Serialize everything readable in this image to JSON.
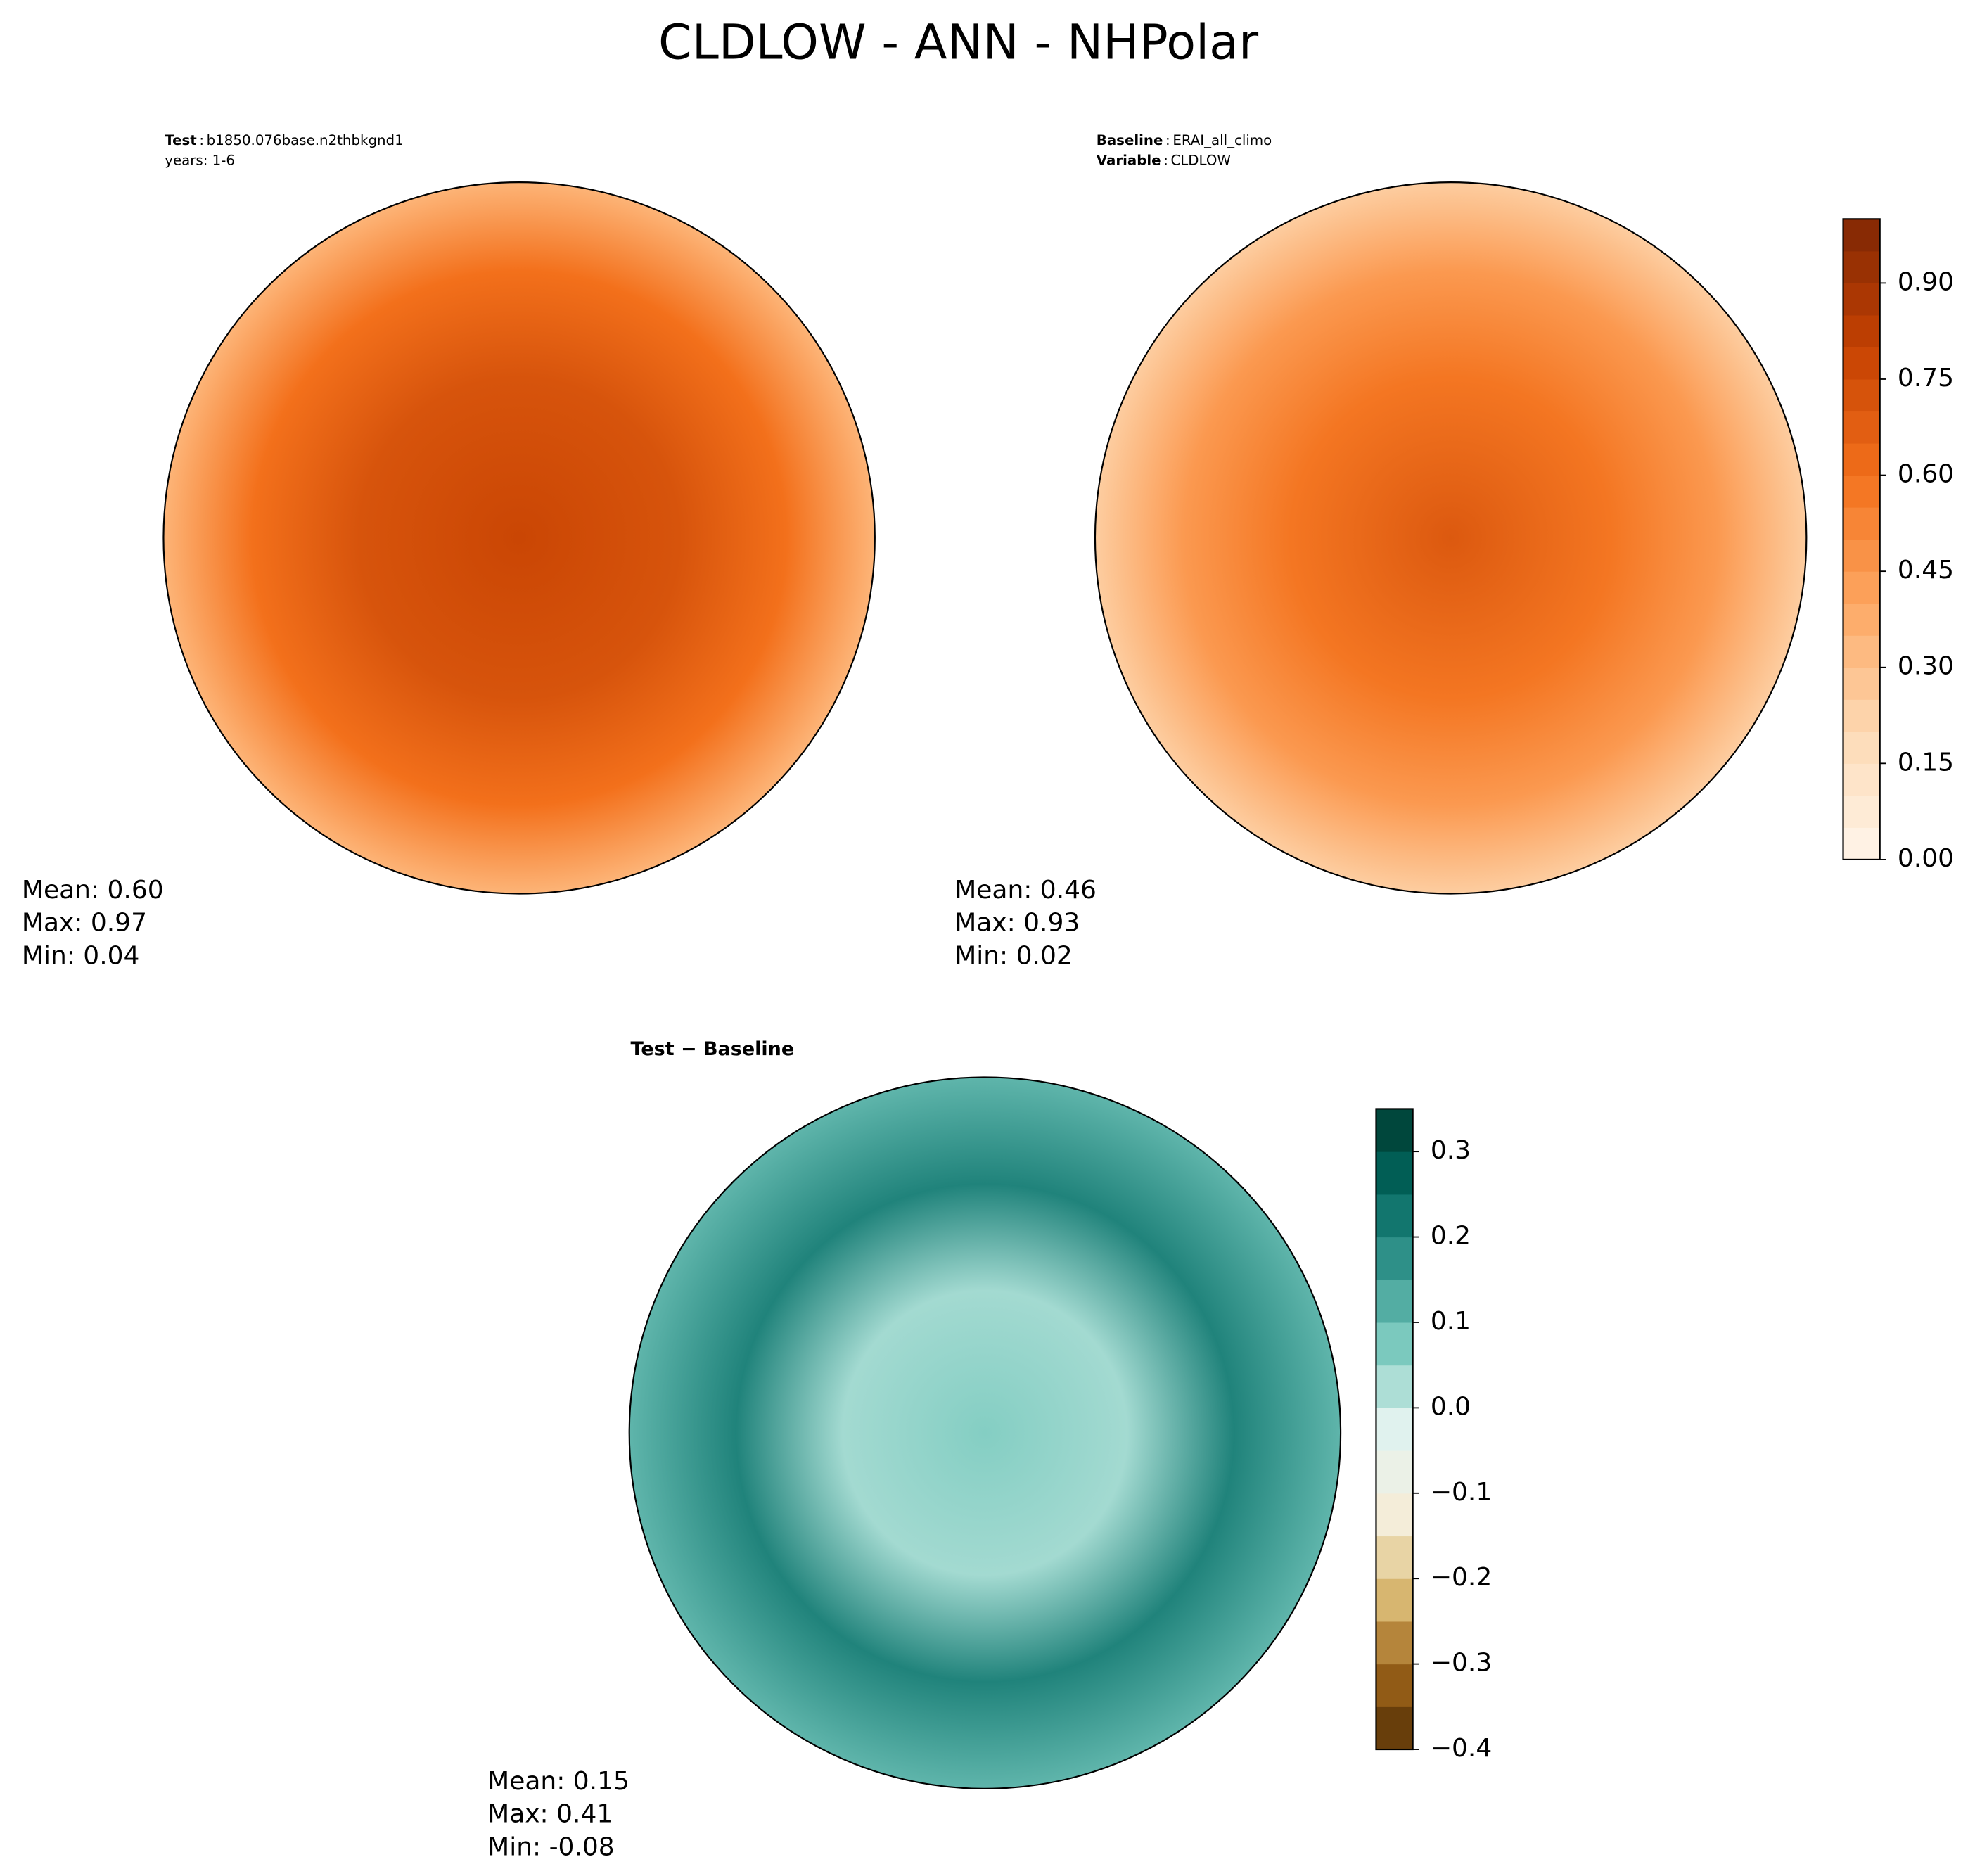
{
  "title": "CLDLOW - ANN - NHPolar",
  "panels": [
    {
      "header": [
        {
          "key": "Test",
          "separator": ":",
          "value": "b1850.076base.n2thbkgnd1"
        },
        {
          "value": "years: 1-6"
        }
      ],
      "stats": [
        "Mean:  0.60",
        "Max:  0.97",
        "Min:  0.04"
      ]
    },
    {
      "header": [
        {
          "key": "Baseline",
          "separator": ":",
          "value": "ERAI_all_climo"
        },
        {
          "key": "Variable",
          "separator": ":",
          "value": "CLDLOW"
        }
      ],
      "stats": [
        "Mean:  0.46",
        "Max:  0.93",
        "Min:  0.02"
      ]
    },
    {
      "header": [
        {
          "key": "Test − Baseline"
        }
      ],
      "stats": [
        "Mean:  0.15",
        "Max:  0.41",
        "Min: -0.08"
      ]
    }
  ],
  "colorbars": [
    {
      "lim": [
        0,
        1.0
      ],
      "level_step": 0.05,
      "colormap": [
        "#fff5eb",
        "#fdd9b4",
        "#fda762",
        "#f3701b",
        "#c54102",
        "#7f2704"
      ],
      "ticks": [
        {
          "value": 0,
          "label": "0.00"
        },
        {
          "value": 0.15,
          "label": "0.15"
        },
        {
          "value": 0.3,
          "label": "0.30"
        },
        {
          "value": 0.45,
          "label": "0.45"
        },
        {
          "value": 0.6,
          "label": "0.60"
        },
        {
          "value": 0.75,
          "label": "0.75"
        },
        {
          "value": 0.9,
          "label": "0.90"
        }
      ]
    },
    {
      "lim": [
        -0.4,
        0.35
      ],
      "level_step": 0.05,
      "colormap": [
        "#543005",
        "#a0661a",
        "#dfc27d",
        "#f5f0e0",
        "#e0f2ee",
        "#80cdc1",
        "#35978f",
        "#01665e",
        "#003c30"
      ],
      "ticks": [
        {
          "value": -0.4,
          "label": "−0.4"
        },
        {
          "value": -0.3,
          "label": "−0.3"
        },
        {
          "value": -0.2,
          "label": "−0.2"
        },
        {
          "value": -0.1,
          "label": "−0.1"
        },
        {
          "value": 0,
          "label": "0.0"
        },
        0.1,
        0.2,
        0.3
      ]
    }
  ]
}
